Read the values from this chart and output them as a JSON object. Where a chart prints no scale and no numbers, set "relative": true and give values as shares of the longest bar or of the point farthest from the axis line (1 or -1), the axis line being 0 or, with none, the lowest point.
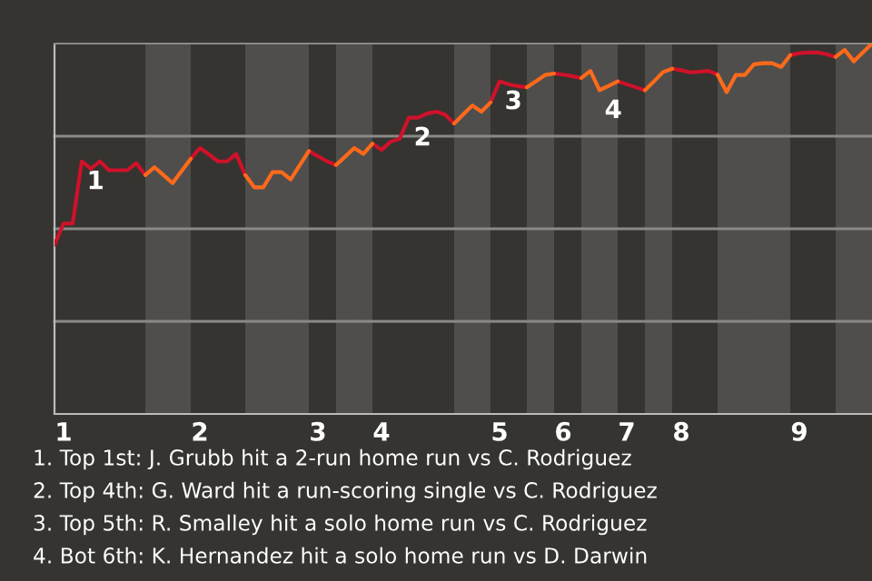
{
  "chart_data": {
    "type": "line",
    "relative": true,
    "tick_labels": "x",
    "line_style": "solid",
    "categories": [
      null,
      "1",
      null,
      null,
      null,
      null,
      null,
      null,
      null,
      null,
      null,
      null,
      null,
      null,
      null,
      null,
      "2",
      null,
      null,
      null,
      null,
      null,
      null,
      null,
      null,
      null,
      null,
      null,
      null,
      "3",
      null,
      null,
      null,
      null,
      null,
      null,
      "4",
      null,
      null,
      null,
      null,
      null,
      null,
      null,
      null,
      null,
      null,
      null,
      null,
      "5",
      null,
      null,
      null,
      null,
      null,
      null,
      "6",
      null,
      null,
      null,
      null,
      null,
      null,
      "7",
      null,
      null,
      null,
      null,
      null,
      "8",
      null,
      null,
      null,
      null,
      null,
      null,
      null,
      null,
      null,
      null,
      null,
      null,
      "9",
      null,
      null,
      null,
      null,
      null,
      null,
      null,
      null
    ],
    "series": [
      {
        "color": "#d0112b",
        "values": [
          0.457,
          0.514,
          0.514,
          0.682,
          0.662,
          0.682,
          0.658,
          0.658,
          0.658,
          0.677,
          0.645,
          null,
          null,
          null,
          null,
          0.689,
          0.718,
          0.701,
          0.682,
          0.682,
          0.702,
          0.645,
          null,
          null,
          null,
          null,
          null,
          null,
          0.71,
          0.696,
          0.682,
          0.672,
          null,
          null,
          null,
          0.73,
          0.713,
          0.735,
          0.743,
          0.8,
          0.8,
          0.811,
          0.816,
          0.808,
          0.784,
          null,
          null,
          null,
          0.841,
          0.898,
          0.89,
          0.885,
          0.882,
          null,
          null,
          0.919,
          0.916,
          0.912,
          0.907,
          null,
          null,
          null,
          0.898,
          0.89,
          0.882,
          0.874,
          null,
          null,
          0.932,
          0.928,
          0.922,
          0.924,
          0.926,
          0.916,
          null,
          null,
          null,
          null,
          null,
          null,
          null,
          0.969,
          0.974,
          0.976,
          0.976,
          0.971,
          0.964,
          null,
          null,
          null,
          null
        ]
      },
      {
        "color": "#ff6a1a",
        "values": [
          null,
          null,
          null,
          null,
          null,
          null,
          null,
          null,
          null,
          null,
          0.645,
          0.666,
          0.645,
          0.623,
          0.656,
          0.689,
          null,
          null,
          null,
          null,
          null,
          0.645,
          0.612,
          0.612,
          0.653,
          0.653,
          0.633,
          0.672,
          0.71,
          null,
          null,
          0.672,
          0.695,
          0.718,
          0.702,
          0.73,
          null,
          null,
          null,
          null,
          null,
          null,
          null,
          null,
          0.784,
          0.809,
          0.833,
          0.816,
          0.841,
          null,
          null,
          null,
          0.882,
          0.898,
          0.915,
          0.919,
          null,
          null,
          0.907,
          0.926,
          0.874,
          0.886,
          0.898,
          null,
          null,
          0.874,
          0.898,
          0.923,
          0.932,
          null,
          null,
          null,
          null,
          0.916,
          0.869,
          0.915,
          0.915,
          0.944,
          0.947,
          0.947,
          0.937,
          0.969,
          null,
          null,
          null,
          null,
          0.964,
          0.983,
          0.952,
          0.976,
          1
        ]
      }
    ],
    "ref_lines": [
      {
        "axis": "y",
        "value": 0.25,
        "color": "#8a8986"
      },
      {
        "axis": "y",
        "value": 0.5,
        "color": "#8a8986"
      },
      {
        "axis": "y",
        "value": 0.75,
        "color": "#8a8986"
      }
    ],
    "annotations": [
      {
        "text": "1",
        "y": 0.682
      },
      {
        "text": "2",
        "y": 0.8
      },
      {
        "text": "3",
        "y": 0.898
      },
      {
        "text": "4",
        "y": 0.874
      },
      "1. Top 1st: J. Grubb hit a 2-run home run vs C. Rodriguez",
      "2. Top 4th: G. Ward hit a run-scoring single vs C. Rodriguez",
      "3. Top 5th: R. Smalley hit a solo home run vs C. Rodriguez",
      "4. Bot 6th: K. Hernandez hit a solo home run vs D. Darwin"
    ]
  }
}
